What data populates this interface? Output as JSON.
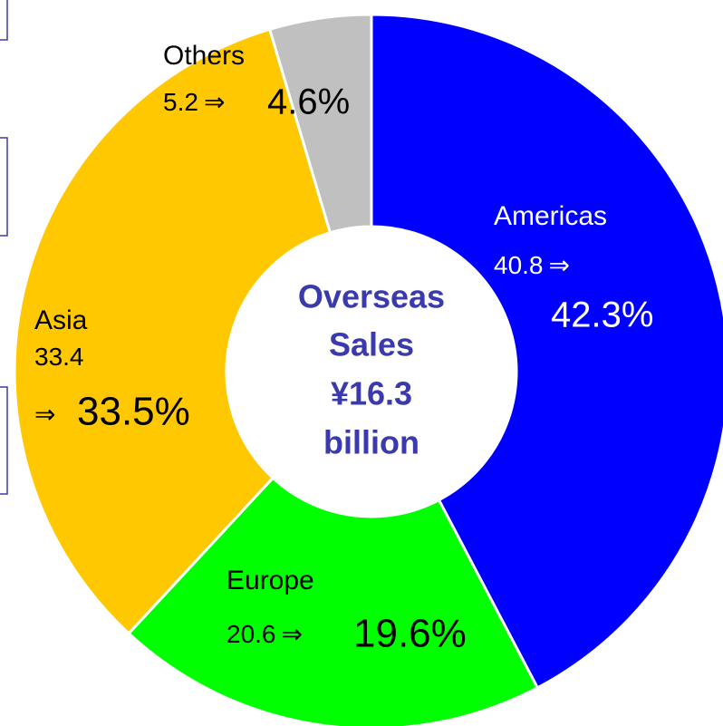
{
  "chart_data": {
    "type": "donut",
    "categories": [
      "Americas",
      "Europe",
      "Asia",
      "Others"
    ],
    "values": [
      42.3,
      19.6,
      33.5,
      4.6
    ],
    "value_labels": [
      "42.3%",
      "19.6%",
      "33.5%",
      "4.6%"
    ],
    "previous": [
      40.8,
      20.6,
      33.4,
      5.2
    ],
    "arrow": "⇒",
    "colors": [
      "#0000ff",
      "#00ff00",
      "#ffc800",
      "#c0c0c0"
    ],
    "center_label": [
      "Overseas",
      "Sales",
      "¥16.3",
      "billion"
    ]
  }
}
